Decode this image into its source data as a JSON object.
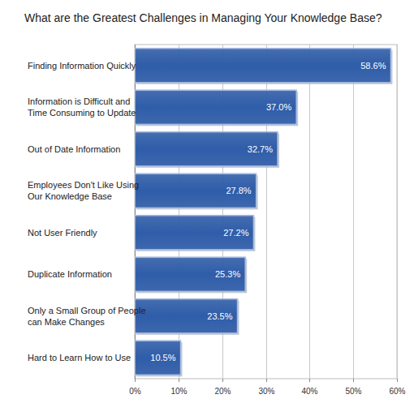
{
  "chart_data": {
    "type": "bar",
    "orientation": "horizontal",
    "title": "What are the Greatest Challenges in Managing Your Knowledge Base?",
    "categories": [
      "Finding Information Quickly",
      "Information is Difficult and Time Consuming to Update",
      "Out of Date Information",
      "Employees Don't Like Using Our Knowledge Base",
      "Not User Friendly",
      "Duplicate Information",
      "Only a Small Group of People can Make Changes",
      "Hard to Learn How to Use"
    ],
    "values": [
      58.6,
      37.0,
      32.7,
      27.8,
      27.2,
      25.3,
      23.5,
      10.5
    ],
    "value_labels": [
      "58.6%",
      "37.0%",
      "32.7%",
      "27.8%",
      "27.2%",
      "25.3%",
      "23.5%",
      "10.5%"
    ],
    "data_labels": true,
    "color": "#2f5da9",
    "xlim": [
      0,
      60
    ],
    "xticks": [
      {
        "value": 0,
        "label": "0%"
      },
      {
        "value": 10,
        "label": "10%"
      },
      {
        "value": 20,
        "label": "20%"
      },
      {
        "value": 30,
        "label": "30%"
      },
      {
        "value": 40,
        "label": "40%"
      },
      {
        "value": 50,
        "label": "50%"
      },
      {
        "value": 60,
        "label": "60%"
      }
    ],
    "grid": true
  }
}
